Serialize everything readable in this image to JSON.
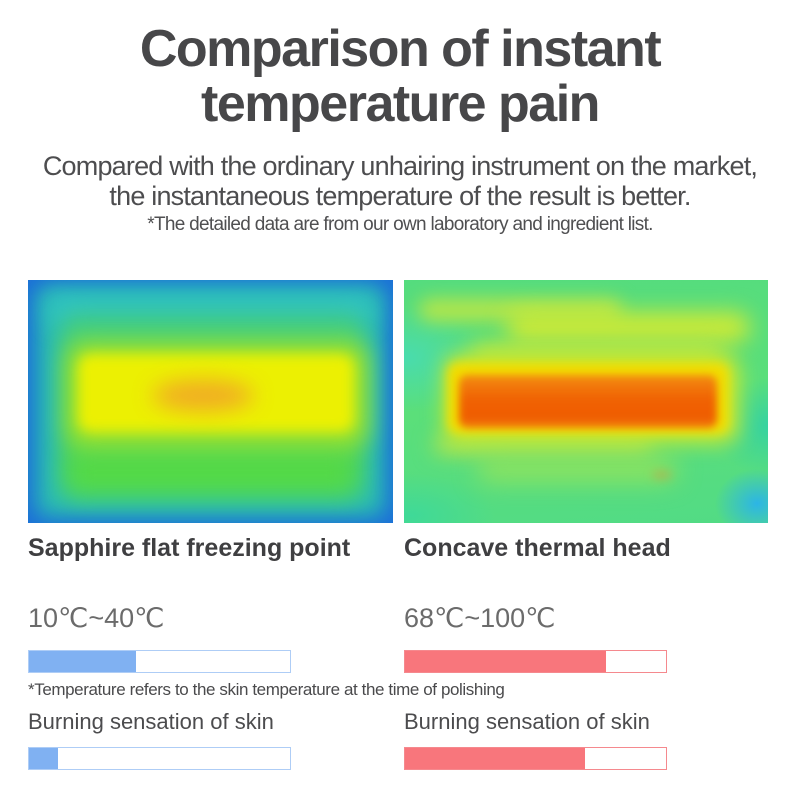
{
  "header": {
    "title_lines": [
      "Comparison of instant",
      "temperature pain"
    ],
    "subtitle_lines": [
      "Compared with the ordinary unhairing instrument on the market,",
      "the instantaneous temperature of the result is better."
    ],
    "footnote": "*The detailed data are from our own laboratory and ingredient list."
  },
  "comparison": {
    "bar_note": "*Temperature refers to the skin temperature at the time of polishing",
    "columns": [
      {
        "id": "sapphire-flat",
        "label": "Sapphire flat freezing point",
        "temp_range": "10℃~40℃",
        "temp_fill_percent": 41,
        "burn_label": "Burning sensation of skin",
        "burn_fill_percent": 11,
        "accent_fill": "#80b1f2",
        "accent_border": "#aecdf6"
      },
      {
        "id": "concave-thermal-head",
        "label": "Concave thermal head",
        "temp_range": "68℃~100℃",
        "temp_fill_percent": 77,
        "burn_label": "Burning sensation of skin",
        "burn_fill_percent": 69,
        "accent_fill": "#f8767c",
        "accent_border": "#f5898e"
      }
    ]
  }
}
